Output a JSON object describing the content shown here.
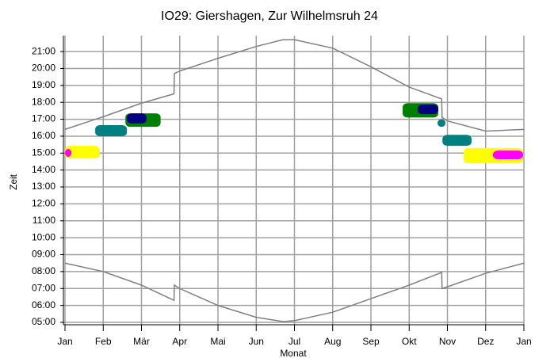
{
  "chart_data": {
    "type": "line",
    "title": "IO29: Giershagen, Zur Wilhelmsruh 24",
    "x_label": "Monat",
    "y_label": "Zeit",
    "xlim": [
      0,
      12
    ],
    "ylim": [
      4.86,
      21.94
    ],
    "xticks": [
      {
        "value": 0,
        "label": "Jan"
      },
      {
        "value": 1,
        "label": "Feb"
      },
      {
        "value": 2,
        "label": "Mär"
      },
      {
        "value": 3,
        "label": "Apr"
      },
      {
        "value": 4,
        "label": "Mai"
      },
      {
        "value": 5,
        "label": "Jun"
      },
      {
        "value": 6,
        "label": "Jul"
      },
      {
        "value": 7,
        "label": "Aug"
      },
      {
        "value": 8,
        "label": "Sep"
      },
      {
        "value": 9,
        "label": "Okt"
      },
      {
        "value": 10,
        "label": "Nov"
      },
      {
        "value": 11,
        "label": "Dez"
      },
      {
        "value": 12,
        "label": "Jan"
      }
    ],
    "yticks": [
      {
        "value": 5,
        "label": "05:00"
      },
      {
        "value": 6,
        "label": "06:00"
      },
      {
        "value": 7,
        "label": "07:00"
      },
      {
        "value": 8,
        "label": "08:00"
      },
      {
        "value": 9,
        "label": "09:00"
      },
      {
        "value": 10,
        "label": "10:00"
      },
      {
        "value": 11,
        "label": "11:00"
      },
      {
        "value": 12,
        "label": "12:00"
      },
      {
        "value": 13,
        "label": "13:00"
      },
      {
        "value": 14,
        "label": "14:00"
      },
      {
        "value": 15,
        "label": "15:00"
      },
      {
        "value": 16,
        "label": "16:00"
      },
      {
        "value": 17,
        "label": "17:00"
      },
      {
        "value": 18,
        "label": "18:00"
      },
      {
        "value": 19,
        "label": "19:00"
      },
      {
        "value": 20,
        "label": "20:00"
      },
      {
        "value": 21,
        "label": "21:00"
      }
    ],
    "grid": true,
    "series": [
      {
        "color": "#808080",
        "x": [
          0,
          1,
          2,
          2.85,
          2.86,
          3,
          4,
          5,
          5.7,
          6,
          7,
          8,
          9,
          9.85,
          9.86,
          10,
          11,
          12
        ],
        "values": [
          16.4,
          17.15,
          17.95,
          18.5,
          19.7,
          19.85,
          20.6,
          21.3,
          21.7,
          21.7,
          21.2,
          20.1,
          18.9,
          18.2,
          17.1,
          16.9,
          16.3,
          16.4
        ]
      },
      {
        "color": "#808080",
        "x": [
          0,
          1,
          2,
          2.85,
          2.86,
          3,
          4,
          5,
          5.7,
          6,
          7,
          8,
          9,
          9.85,
          9.86,
          10,
          11,
          12
        ],
        "values": [
          8.5,
          8.0,
          7.2,
          6.3,
          7.2,
          7.0,
          6.0,
          5.3,
          5.05,
          5.1,
          5.6,
          6.4,
          7.2,
          7.95,
          7.0,
          7.1,
          7.9,
          8.5
        ]
      }
    ],
    "regions": [
      {
        "color": "#ffff00",
        "x0": 0,
        "x1": 0.9,
        "y0": 14.68,
        "y1": 15.43
      },
      {
        "color": "#ff00ff",
        "x0": 0,
        "x1": 0.17,
        "y0": 14.78,
        "y1": 15.25
      },
      {
        "color": "#008080",
        "x0": 0.79,
        "x1": 1.62,
        "y0": 16.0,
        "y1": 16.65
      },
      {
        "color": "#008000",
        "x0": 1.58,
        "x1": 2.5,
        "y0": 16.55,
        "y1": 17.35
      },
      {
        "color": "#000080",
        "x0": 1.62,
        "x1": 2.13,
        "y0": 16.75,
        "y1": 17.35
      },
      {
        "color": "#008000",
        "x0": 8.83,
        "x1": 9.76,
        "y0": 17.1,
        "y1": 17.95
      },
      {
        "color": "#000080",
        "x0": 9.22,
        "x1": 9.76,
        "y0": 17.3,
        "y1": 17.87
      },
      {
        "color": "#008080",
        "x0": 9.74,
        "x1": 9.95,
        "y0": 16.55,
        "y1": 17.0
      },
      {
        "color": "#008080",
        "x0": 9.87,
        "x1": 10.63,
        "y0": 15.43,
        "y1": 16.08
      },
      {
        "color": "#ffff00",
        "x0": 10.42,
        "x1": 11.98,
        "y0": 14.4,
        "y1": 15.3
      },
      {
        "color": "#ff00ff",
        "x0": 11.19,
        "x1": 11.98,
        "y0": 14.64,
        "y1": 15.15
      }
    ]
  }
}
